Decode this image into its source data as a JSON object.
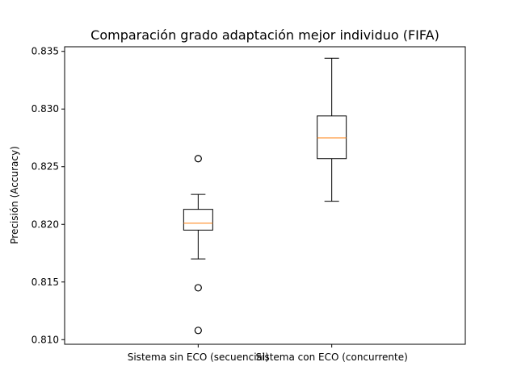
{
  "chart_data": {
    "type": "box",
    "title": "Comparación grado adaptación mejor individuo (FIFA)",
    "xlabel": "",
    "ylabel": "Precisión (Accuracy)",
    "ylim": [
      0.8096,
      0.8354
    ],
    "yticks": [
      0.81,
      0.815,
      0.82,
      0.825,
      0.83,
      0.835
    ],
    "ytick_labels": [
      "0.810",
      "0.815",
      "0.820",
      "0.825",
      "0.830",
      "0.835"
    ],
    "categories": [
      "Sistema sin ECO (secuencial)",
      "Sistema con ECO (concurrente)"
    ],
    "boxes": [
      {
        "category": "Sistema sin ECO (secuencial)",
        "whisker_low": 0.817,
        "q1": 0.8195,
        "median": 0.8201,
        "q3": 0.8213,
        "whisker_high": 0.8226,
        "outliers": [
          0.8257,
          0.8145,
          0.8108
        ]
      },
      {
        "category": "Sistema con ECO (concurrente)",
        "whisker_low": 0.822,
        "q1": 0.8257,
        "median": 0.8275,
        "q3": 0.8294,
        "whisker_high": 0.8344,
        "outliers": []
      }
    ],
    "grid": false,
    "colors": {
      "box": "#000000",
      "median": "#ff7f0e",
      "flier": "#000000",
      "background": "#ffffff"
    }
  }
}
